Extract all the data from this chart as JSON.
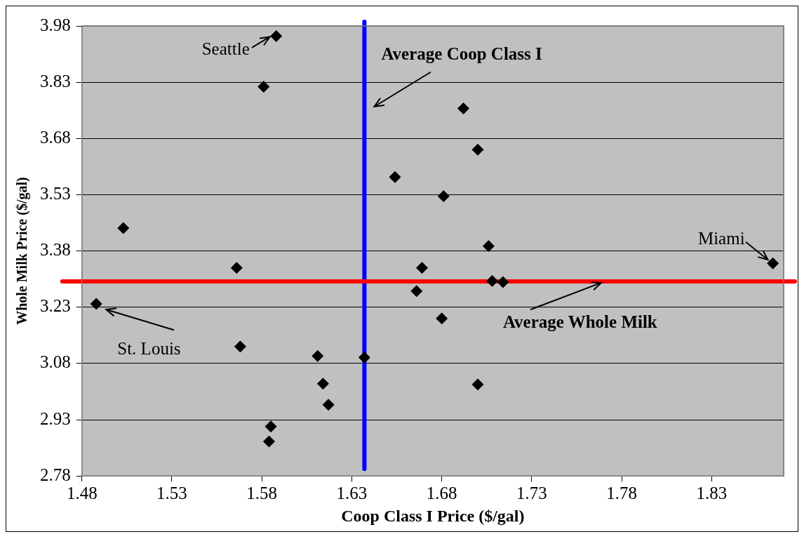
{
  "chart_data": {
    "type": "scatter",
    "xlabel": "Coop Class I Price ($/gal)",
    "ylabel": "Whole Milk Price ($/gal)",
    "xlim": [
      1.48,
      1.87
    ],
    "xticks": [
      1.48,
      1.53,
      1.58,
      1.63,
      1.68,
      1.73,
      1.78,
      1.83
    ],
    "ylim": [
      2.78,
      3.98
    ],
    "yticks": [
      2.78,
      2.93,
      3.08,
      3.23,
      3.38,
      3.53,
      3.68,
      3.83,
      3.98
    ],
    "grid": "y",
    "legend": false,
    "marker": "diamond",
    "series": [
      {
        "color": "#000000",
        "x": [
          1.588,
          1.581,
          1.692,
          1.7,
          1.654,
          1.681,
          1.503,
          1.706,
          1.566,
          1.669,
          1.864,
          1.708,
          1.714,
          1.666,
          1.488,
          1.68,
          1.568,
          1.611,
          1.637,
          1.614,
          1.617,
          1.585,
          1.584,
          1.7
        ],
        "values": [
          3.953,
          3.818,
          3.76,
          3.65,
          3.577,
          3.526,
          3.441,
          3.393,
          3.335,
          3.335,
          3.347,
          3.3,
          3.297,
          3.273,
          3.239,
          3.2,
          3.125,
          3.1,
          3.096,
          3.026,
          2.97,
          2.912,
          2.872,
          3.024
        ]
      }
    ],
    "ref_lines": [
      {
        "axis": "x",
        "value": 1.637,
        "label": "Average Coop Class I",
        "color": "#0000ff"
      },
      {
        "axis": "y",
        "value": 3.299,
        "label": "Average Whole Milk",
        "color": "#ff0000"
      }
    ],
    "annotations": [
      {
        "text": "Seattle",
        "x": 1.588,
        "y": 3.953
      },
      {
        "text": "Miami",
        "x": 1.864,
        "y": 3.347
      },
      {
        "text": "St. Louis",
        "x": 1.488,
        "y": 3.239
      }
    ]
  }
}
